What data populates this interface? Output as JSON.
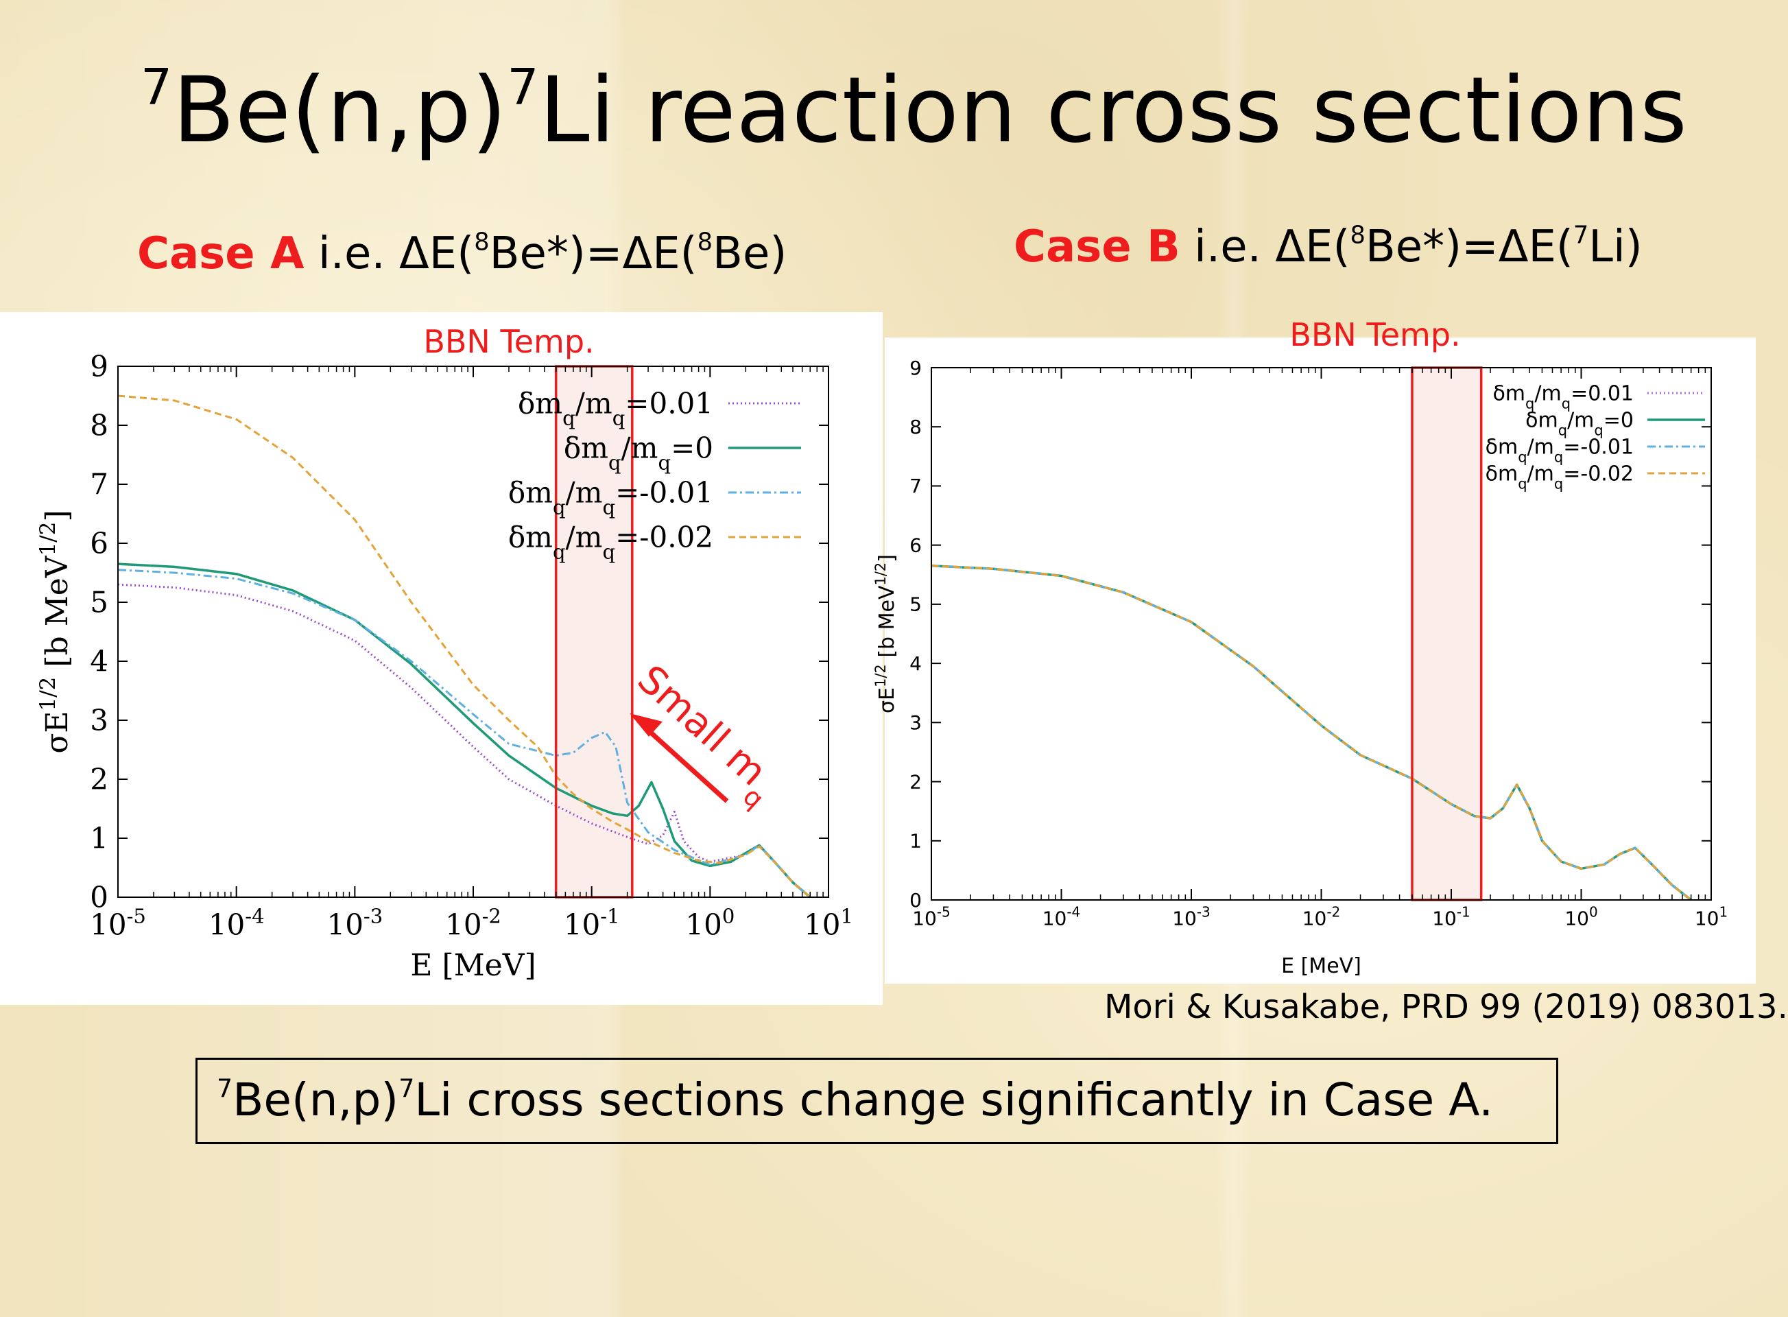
{
  "slide": {
    "title": {
      "pre": "7",
      "mid": "Be(n,p)",
      "sup2": "7",
      "post": "Li reaction cross sections"
    },
    "case_a": {
      "label": "Case A",
      "t1": " i.e. ΔE(",
      "s1": "8",
      "t2": "Be*)=ΔE(",
      "s2": "8",
      "t3": "Be)"
    },
    "case_b": {
      "label": "Case B",
      "t1": " i.e. ΔE(",
      "s1": "8",
      "t2": "Be*)=ΔE(",
      "s2": "7",
      "t3": "Li)"
    },
    "citation": "Mori & Kusakabe, PRD 99 (2019) 083013.",
    "conclusion": {
      "sup1": "7",
      "mid": "Be(n,p)",
      "sup2": "7",
      "post": "Li cross sections change significantly in Case A."
    },
    "accent_color": "#ee1c1c"
  },
  "chart_data": [
    {
      "type": "line",
      "panel": "Case A",
      "xlabel": "E [MeV]",
      "ylabel": "σE^{1/2} [b MeV^{1/2}]",
      "xscale": "log",
      "xlim": [
        1e-05,
        10
      ],
      "ylim": [
        0,
        9
      ],
      "x_ticks": [
        "10^-5",
        "10^-4",
        "10^-3",
        "10^-2",
        "10^-1",
        "10^0",
        "10^1"
      ],
      "y_ticks": [
        "0",
        "1",
        "2",
        "3",
        "4",
        "5",
        "6",
        "7",
        "8",
        "9"
      ],
      "shaded_region": {
        "label": "BBN Temp.",
        "x": [
          0.05,
          0.22
        ]
      },
      "annotation": {
        "text": "Small m",
        "sub": "q"
      },
      "legend_position": "top-right",
      "series": [
        {
          "name": "δm_q/m_q=0.01",
          "color": "#9b4dca",
          "style": "dotted",
          "x": [
            1e-05,
            3e-05,
            0.0001,
            0.0003,
            0.001,
            0.003,
            0.01,
            0.02,
            0.05,
            0.1,
            0.2,
            0.3,
            0.4,
            0.5,
            0.6,
            0.8,
            1,
            2,
            2.6,
            3.5,
            5,
            7
          ],
          "y": [
            5.3,
            5.25,
            5.12,
            4.85,
            4.35,
            3.55,
            2.55,
            2.0,
            1.55,
            1.25,
            1.02,
            0.9,
            1.05,
            1.45,
            0.95,
            0.68,
            0.6,
            0.72,
            0.88,
            0.6,
            0.25,
            0.0
          ]
        },
        {
          "name": "δm_q/m_q=0",
          "color": "#1f9a78",
          "style": "solid",
          "x": [
            1e-05,
            3e-05,
            0.0001,
            0.0003,
            0.001,
            0.003,
            0.01,
            0.02,
            0.05,
            0.1,
            0.15,
            0.2,
            0.25,
            0.32,
            0.4,
            0.5,
            0.7,
            1,
            1.5,
            2,
            2.6,
            3.5,
            5,
            7
          ],
          "y": [
            5.65,
            5.6,
            5.48,
            5.2,
            4.7,
            3.95,
            2.95,
            2.4,
            1.85,
            1.55,
            1.42,
            1.38,
            1.55,
            1.95,
            1.5,
            0.95,
            0.62,
            0.53,
            0.6,
            0.75,
            0.88,
            0.6,
            0.25,
            0.0
          ]
        },
        {
          "name": "δm_q/m_q=-0.01",
          "color": "#5fb0e0",
          "style": "dashdot",
          "x": [
            1e-05,
            3e-05,
            0.0001,
            0.0003,
            0.001,
            0.003,
            0.01,
            0.02,
            0.05,
            0.07,
            0.1,
            0.13,
            0.16,
            0.2,
            0.3,
            0.5,
            1,
            2,
            2.6,
            3.5,
            5,
            7
          ],
          "y": [
            5.55,
            5.5,
            5.4,
            5.15,
            4.7,
            4.0,
            3.1,
            2.6,
            2.4,
            2.45,
            2.7,
            2.8,
            2.55,
            1.6,
            1.1,
            0.8,
            0.55,
            0.72,
            0.88,
            0.6,
            0.25,
            0.0
          ]
        },
        {
          "name": "δm_q/m_q=-0.02",
          "color": "#e3a33a",
          "style": "dashed",
          "x": [
            1e-05,
            3e-05,
            0.0001,
            0.0003,
            0.001,
            0.003,
            0.01,
            0.02,
            0.035,
            0.05,
            0.07,
            0.1,
            0.15,
            0.2,
            0.3,
            0.5,
            0.8,
            1.2,
            2,
            2.6,
            3.5,
            5,
            7
          ],
          "y": [
            8.5,
            8.42,
            8.1,
            7.45,
            6.4,
            5.0,
            3.6,
            3.0,
            2.55,
            2.05,
            1.75,
            1.5,
            1.28,
            1.15,
            0.95,
            0.75,
            0.62,
            0.58,
            0.72,
            0.86,
            0.6,
            0.25,
            0.0
          ]
        }
      ]
    },
    {
      "type": "line",
      "panel": "Case B",
      "xlabel": "E [MeV]",
      "ylabel": "σE^{1/2} [b MeV^{1/2}]",
      "xscale": "log",
      "xlim": [
        1e-05,
        10
      ],
      "ylim": [
        0,
        9
      ],
      "x_ticks": [
        "10^-5",
        "10^-4",
        "10^-3",
        "10^-2",
        "10^-1",
        "10^0",
        "10^1"
      ],
      "y_ticks": [
        "0",
        "1",
        "2",
        "3",
        "4",
        "5",
        "6",
        "7",
        "8",
        "9"
      ],
      "shaded_region": {
        "label": "BBN Temp.",
        "x": [
          0.05,
          0.17
        ]
      },
      "legend_position": "top-right",
      "series": [
        {
          "name": "δm_q/m_q=0.01",
          "color": "#b36ae2",
          "style": "dotted",
          "x": [
            1e-05,
            3e-05,
            0.0001,
            0.0003,
            0.001,
            0.003,
            0.01,
            0.02,
            0.05,
            0.1,
            0.15,
            0.2,
            0.25,
            0.32,
            0.4,
            0.5,
            0.7,
            1,
            1.5,
            2,
            2.6,
            3.5,
            5,
            7
          ],
          "y": [
            5.65,
            5.6,
            5.48,
            5.2,
            4.7,
            3.95,
            2.95,
            2.45,
            2.05,
            1.62,
            1.42,
            1.38,
            1.55,
            1.95,
            1.55,
            1.0,
            0.65,
            0.53,
            0.6,
            0.78,
            0.88,
            0.6,
            0.25,
            0.0
          ]
        },
        {
          "name": "δm_q/m_q=0",
          "color": "#1f9a78",
          "style": "solid",
          "x": [
            1e-05,
            3e-05,
            0.0001,
            0.0003,
            0.001,
            0.003,
            0.01,
            0.02,
            0.05,
            0.1,
            0.15,
            0.2,
            0.25,
            0.32,
            0.4,
            0.5,
            0.7,
            1,
            1.5,
            2,
            2.6,
            3.5,
            5,
            7
          ],
          "y": [
            5.65,
            5.6,
            5.48,
            5.2,
            4.7,
            3.95,
            2.95,
            2.45,
            2.05,
            1.62,
            1.42,
            1.38,
            1.55,
            1.95,
            1.55,
            1.0,
            0.65,
            0.53,
            0.6,
            0.78,
            0.88,
            0.6,
            0.25,
            0.0
          ]
        },
        {
          "name": "δm_q/m_q=-0.01",
          "color": "#5fb0e0",
          "style": "dashdot",
          "x": [
            1e-05,
            3e-05,
            0.0001,
            0.0003,
            0.001,
            0.003,
            0.01,
            0.02,
            0.05,
            0.1,
            0.15,
            0.2,
            0.25,
            0.32,
            0.4,
            0.5,
            0.7,
            1,
            1.5,
            2,
            2.6,
            3.5,
            5,
            7
          ],
          "y": [
            5.65,
            5.6,
            5.48,
            5.2,
            4.7,
            3.95,
            2.95,
            2.45,
            2.05,
            1.62,
            1.42,
            1.38,
            1.55,
            1.95,
            1.55,
            1.0,
            0.65,
            0.53,
            0.6,
            0.78,
            0.88,
            0.6,
            0.25,
            0.0
          ]
        },
        {
          "name": "δm_q/m_q=-0.02",
          "color": "#e3a33a",
          "style": "dashed",
          "x": [
            1e-05,
            3e-05,
            0.0001,
            0.0003,
            0.001,
            0.003,
            0.01,
            0.02,
            0.05,
            0.1,
            0.15,
            0.2,
            0.25,
            0.32,
            0.4,
            0.5,
            0.7,
            1,
            1.5,
            2,
            2.6,
            3.5,
            5,
            7
          ],
          "y": [
            5.65,
            5.6,
            5.48,
            5.2,
            4.7,
            3.95,
            2.95,
            2.45,
            2.05,
            1.62,
            1.42,
            1.38,
            1.55,
            1.95,
            1.55,
            1.0,
            0.65,
            0.53,
            0.6,
            0.78,
            0.88,
            0.6,
            0.25,
            0.0
          ]
        }
      ]
    }
  ]
}
